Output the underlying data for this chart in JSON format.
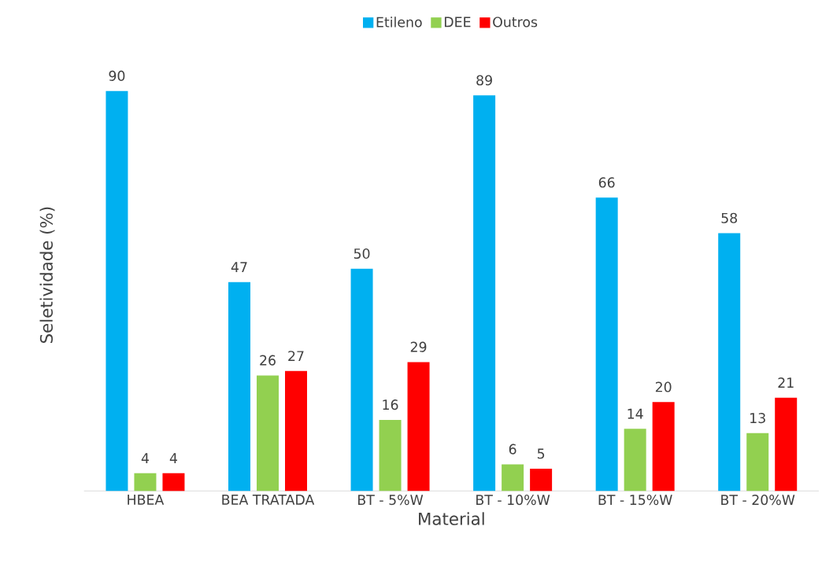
{
  "chart_data": {
    "type": "bar",
    "xlabel": "Material",
    "ylabel": "Seletividade (%)",
    "categories": [
      "HBEA",
      "BEA TRATADA",
      "BT - 5%W",
      "BT - 10%W",
      "BT - 15%W",
      "BT - 20%W"
    ],
    "series": [
      {
        "name": "Etileno",
        "color": "#00b0f0",
        "values": [
          90,
          47,
          50,
          89,
          66,
          58
        ]
      },
      {
        "name": "DEE",
        "color": "#92d050",
        "values": [
          4,
          26,
          16,
          6,
          14,
          13
        ]
      },
      {
        "name": "Outros",
        "color": "#ff0000",
        "values": [
          4,
          27,
          29,
          5,
          20,
          21
        ]
      }
    ],
    "data_labels": true,
    "legend": "top"
  }
}
